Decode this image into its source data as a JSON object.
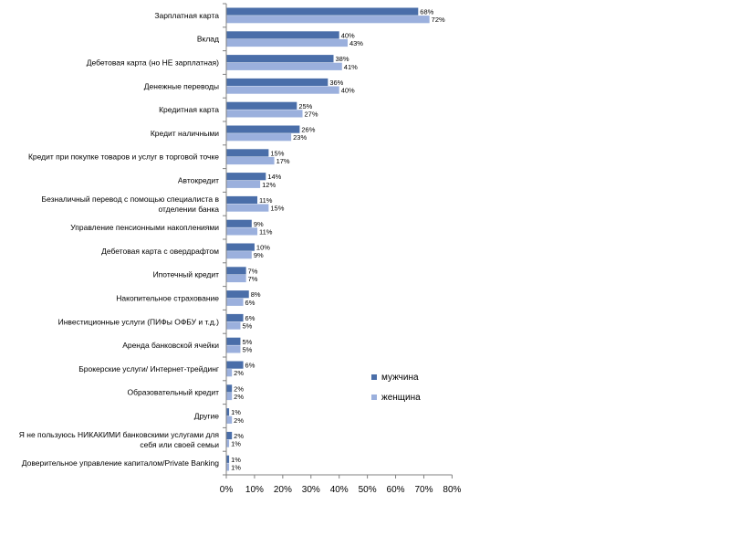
{
  "chart_data": {
    "type": "bar",
    "orientation": "horizontal",
    "categories": [
      [
        "Зарплатная карта"
      ],
      [
        "Вклад"
      ],
      [
        "Дебетовая карта (но НЕ зарплатная)"
      ],
      [
        "Денежные переводы"
      ],
      [
        "Кредитная карта"
      ],
      [
        "Кредит наличными"
      ],
      [
        "Кредит при покупке товаров и услуг в торговой точке"
      ],
      [
        "Автокредит"
      ],
      [
        "Безналичный перевод с помощью специалиста в",
        "отделении банка"
      ],
      [
        "Управление пенсионными накоплениями"
      ],
      [
        "Дебетовая карта с овердрафтом"
      ],
      [
        "Ипотечный кредит"
      ],
      [
        "Накопительное страхование"
      ],
      [
        "Инвестиционные услуги (ПИФы ОФБУ и т.д.)"
      ],
      [
        "Аренда банковской ячейки"
      ],
      [
        "Брокерские услуги/ Интернет-трейдинг"
      ],
      [
        "Образовательный кредит"
      ],
      [
        "Другие"
      ],
      [
        "Я не пользуюсь НИКАКИМИ банковскими услугами для",
        "себя или своей семьи"
      ],
      [
        "Доверительное управление капиталом/Private Banking"
      ]
    ],
    "series": [
      {
        "name": "мужчина",
        "color": "#4a6ea9",
        "values": [
          68,
          40,
          38,
          36,
          25,
          26,
          15,
          14,
          11,
          9,
          10,
          7,
          8,
          6,
          5,
          6,
          2,
          1,
          2,
          1
        ]
      },
      {
        "name": "женщина",
        "color": "#9bb0dd",
        "values": [
          72,
          43,
          41,
          40,
          27,
          23,
          17,
          12,
          15,
          11,
          9,
          7,
          6,
          5,
          5,
          2,
          2,
          2,
          1,
          1
        ]
      }
    ],
    "value_suffix": "%",
    "xlim": [
      0,
      80
    ],
    "xticks": [
      "0%",
      "10%",
      "20%",
      "30%",
      "40%",
      "50%",
      "60%",
      "70%",
      "80%"
    ],
    "grid": false,
    "legend_position": "right"
  }
}
